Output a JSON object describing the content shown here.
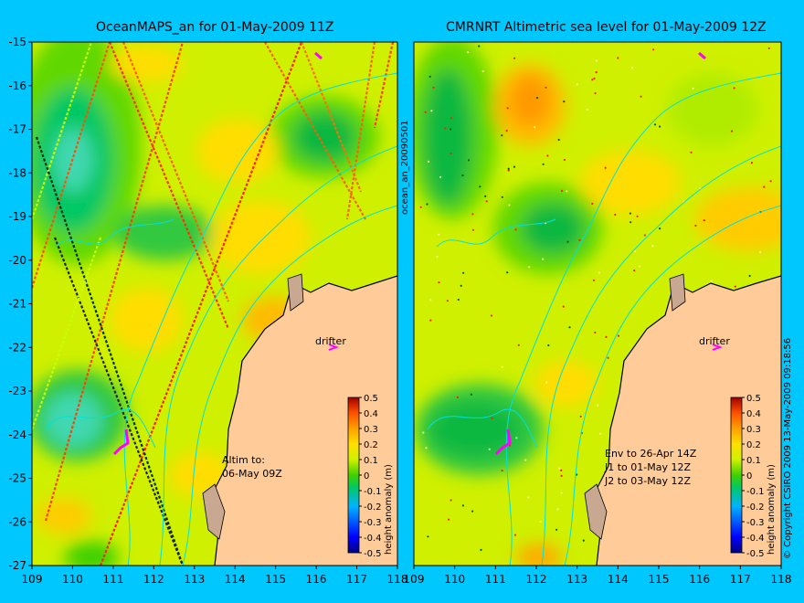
{
  "panels": [
    {
      "title": "OceanMAPS_an for 01-May-2009 11Z",
      "drifter_label": "drifter",
      "annotation": [
        "Altim to:",
        "06-May 09Z"
      ]
    },
    {
      "title": "CMRNRT Altimetric sea level  for 01-May-2009 12Z",
      "drifter_label": "drifter",
      "annotation": [
        "Env to 26-Apr 14Z",
        "J1 to 01-May 12Z",
        "J2 to 03-May 12Z"
      ]
    }
  ],
  "axes": {
    "lon_ticks": [
      "109",
      "110",
      "111",
      "112",
      "113",
      "114",
      "115",
      "116",
      "117",
      "118"
    ],
    "lat_ticks": [
      "-15",
      "-16",
      "-17",
      "-18",
      "-19",
      "-20",
      "-21",
      "-22",
      "-23",
      "-24",
      "-25",
      "-26",
      "-27"
    ]
  },
  "colorbar": {
    "ticks": [
      "0.5",
      "0.4",
      "0.3",
      "0.2",
      "0.1",
      "0",
      "-0.1",
      "-0.2",
      "-0.3",
      "-0.4",
      "-0.5"
    ],
    "label": "height anomaly (m)"
  },
  "side_texts": {
    "middle": "ocean_an_20090501",
    "right": "© Copyright CSIRO 2009  13-May-2009 09:18:56"
  },
  "colors": {
    "background": "#00c8ff",
    "land": "#ffcc99",
    "sea_base": "#cff000",
    "contour": "#00e0e0",
    "drifter": "#ff00ff"
  }
}
